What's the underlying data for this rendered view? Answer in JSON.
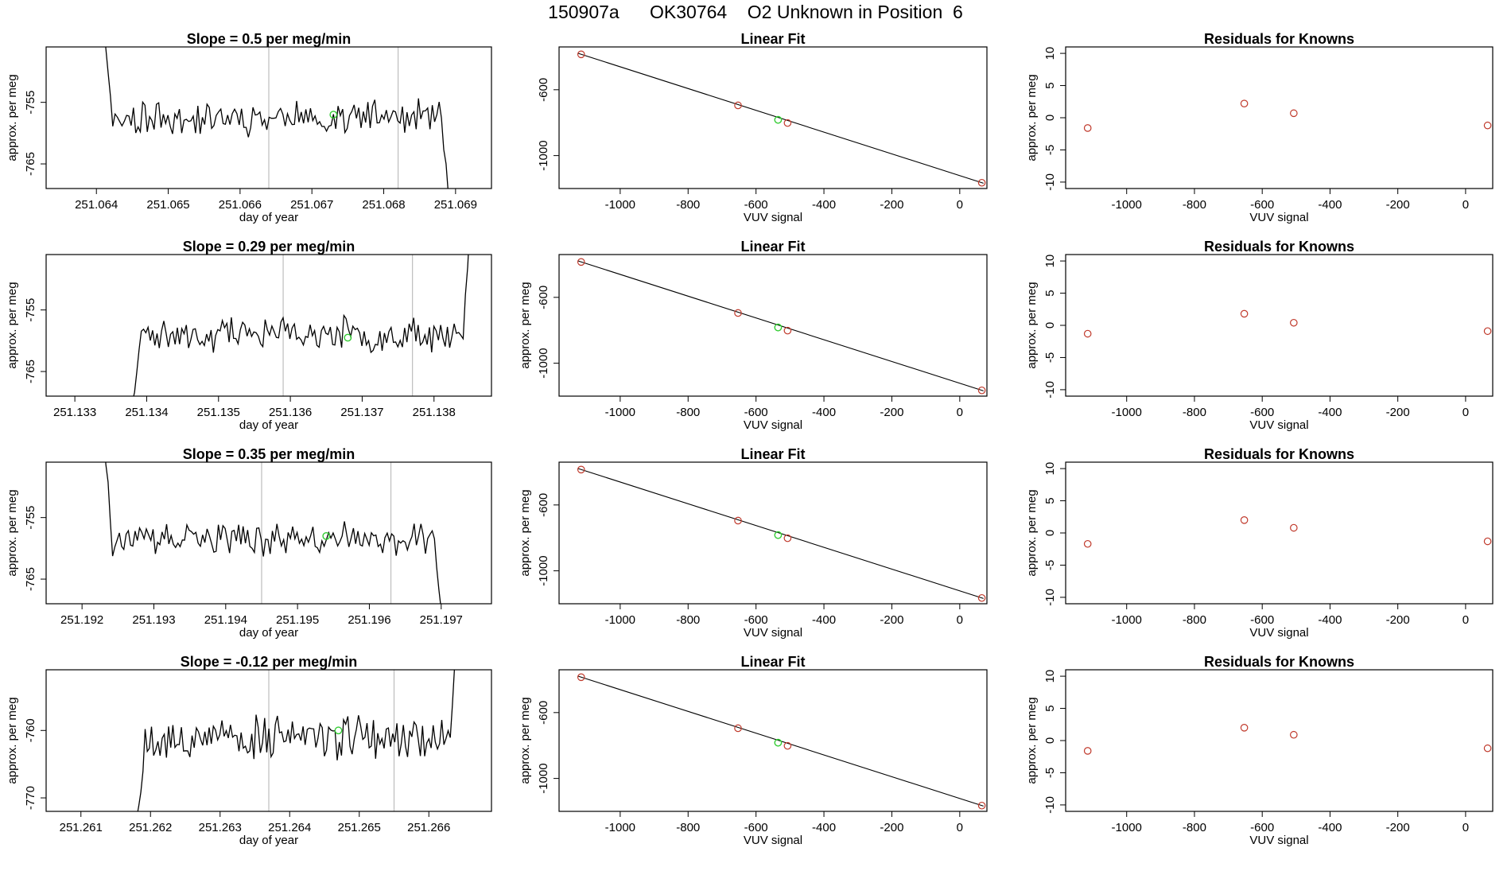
{
  "header": {
    "title": "150907a      OK30764    O2 Unknown in Position  6"
  },
  "colors": {
    "axis": "#000000",
    "series": "#000000",
    "vline": "#bdbdbd",
    "known": "#c0392b",
    "unknown": "#33cc33"
  },
  "chart_data": [
    {
      "id": "ts1",
      "type": "line",
      "title": "Slope =  0.5  per meg/min",
      "xlabel": "day of year",
      "ylabel": "approx. per meg",
      "xlim": [
        251.0633,
        251.0695
      ],
      "ylim": [
        -769,
        -746
      ],
      "xticks": [
        "251.064",
        "251.065",
        "251.066",
        "251.067",
        "251.068",
        "251.069"
      ],
      "yticks": [
        "-755",
        "-765"
      ],
      "vlines": [
        251.0664,
        251.0682
      ],
      "unknown_point": [
        251.0673,
        -757.0
      ],
      "seed": 11,
      "start": [
        251.0641,
        -741
      ],
      "end": [
        251.0689,
        -770
      ],
      "n": 150,
      "level": -757.5,
      "noise": 2.2
    },
    {
      "id": "lf1",
      "type": "scatter",
      "title": "Linear Fit",
      "xlabel": "VUV signal",
      "ylabel": "",
      "xlim": [
        -1180,
        80
      ],
      "ylim": [
        -1200,
        -340
      ],
      "xticks": [
        "-1000",
        "-800",
        "-600",
        "-400",
        "-200",
        "0"
      ],
      "yticks": [
        "-600",
        "-1000"
      ],
      "known_x": [
        -1115,
        -653,
        -507,
        65
      ],
      "known_y": [
        -385,
        -695,
        -802,
        -1165
      ],
      "fit_line": [
        [
          -1125,
          -378
        ],
        [
          70,
          -1168
        ]
      ],
      "unknown_point": [
        -535,
        -783
      ]
    },
    {
      "id": "rs1",
      "type": "scatter",
      "title": "Residuals for Knowns",
      "xlabel": "VUV signal",
      "ylabel": "approx. per meg",
      "xlim": [
        -1180,
        80
      ],
      "ylim": [
        -11,
        11
      ],
      "xticks": [
        "-1000",
        "-800",
        "-600",
        "-400",
        "-200",
        "0"
      ],
      "yticks": [
        "10",
        "5",
        "0",
        "-5",
        "-10"
      ],
      "known_x": [
        -1115,
        -653,
        -507,
        65
      ],
      "known_y": [
        -1.6,
        2.2,
        0.7,
        -1.2
      ]
    },
    {
      "id": "ts2",
      "type": "line",
      "title": "Slope =  0.29  per meg/min",
      "xlabel": "day of year",
      "ylabel": "approx. per meg",
      "xlim": [
        251.1326,
        251.1388
      ],
      "ylim": [
        -769,
        -746
      ],
      "xticks": [
        "251.133",
        "251.134",
        "251.135",
        "251.136",
        "251.137",
        "251.138"
      ],
      "yticks": [
        "-755",
        "-765"
      ],
      "vlines": [
        251.1359,
        251.1377
      ],
      "unknown_point": [
        251.1368,
        -759.5
      ],
      "seed": 23,
      "start": [
        251.1338,
        -770
      ],
      "end": [
        251.1385,
        -741
      ],
      "n": 150,
      "level": -759.0,
      "noise": 2.2
    },
    {
      "id": "lf2",
      "type": "scatter",
      "title": "Linear Fit",
      "xlabel": "VUV signal",
      "ylabel": "approx. per meg",
      "xlim": [
        -1180,
        80
      ],
      "ylim": [
        -1200,
        -340
      ],
      "xticks": [
        "-1000",
        "-800",
        "-600",
        "-400",
        "-200",
        "0"
      ],
      "yticks": [
        "-600",
        "-1000"
      ],
      "known_x": [
        -1115,
        -653,
        -507,
        65
      ],
      "known_y": [
        -385,
        -695,
        -802,
        -1165
      ],
      "fit_line": [
        [
          -1125,
          -378
        ],
        [
          70,
          -1168
        ]
      ],
      "unknown_point": [
        -535,
        -783
      ]
    },
    {
      "id": "rs2",
      "type": "scatter",
      "title": "Residuals for Knowns",
      "xlabel": "VUV signal",
      "ylabel": "approx. per meg",
      "xlim": [
        -1180,
        80
      ],
      "ylim": [
        -11,
        11
      ],
      "xticks": [
        "-1000",
        "-800",
        "-600",
        "-400",
        "-200",
        "0"
      ],
      "yticks": [
        "10",
        "5",
        "0",
        "-5",
        "-10"
      ],
      "known_x": [
        -1115,
        -653,
        -507,
        65
      ],
      "known_y": [
        -1.3,
        1.8,
        0.4,
        -0.9
      ]
    },
    {
      "id": "ts3",
      "type": "line",
      "title": "Slope =  0.35  per meg/min",
      "xlabel": "day of year",
      "ylabel": "approx. per meg",
      "xlim": [
        251.1915,
        251.1977
      ],
      "ylim": [
        -769,
        -746
      ],
      "xticks": [
        "251.192",
        "251.193",
        "251.194",
        "251.195",
        "251.196",
        "251.197"
      ],
      "yticks": [
        "-755",
        "-765"
      ],
      "vlines": [
        251.1945,
        251.1963
      ],
      "unknown_point": [
        251.1954,
        -758.0
      ],
      "seed": 37,
      "start": [
        251.1923,
        -741
      ],
      "end": [
        251.197,
        -770
      ],
      "n": 150,
      "level": -758.5,
      "noise": 2.0
    },
    {
      "id": "lf3",
      "type": "scatter",
      "title": "Linear Fit",
      "xlabel": "VUV signal",
      "ylabel": "approx. per meg",
      "xlim": [
        -1180,
        80
      ],
      "ylim": [
        -1200,
        -340
      ],
      "xticks": [
        "-1000",
        "-800",
        "-600",
        "-400",
        "-200",
        "0"
      ],
      "yticks": [
        "-600",
        "-1000"
      ],
      "known_x": [
        -1115,
        -653,
        -507,
        65
      ],
      "known_y": [
        -385,
        -695,
        -802,
        -1165
      ],
      "fit_line": [
        [
          -1125,
          -378
        ],
        [
          70,
          -1168
        ]
      ],
      "unknown_point": [
        -535,
        -783
      ]
    },
    {
      "id": "rs3",
      "type": "scatter",
      "title": "Residuals for Knowns",
      "xlabel": "VUV signal",
      "ylabel": "approx. per meg",
      "xlim": [
        -1180,
        80
      ],
      "ylim": [
        -11,
        11
      ],
      "xticks": [
        "-1000",
        "-800",
        "-600",
        "-400",
        "-200",
        "0"
      ],
      "yticks": [
        "10",
        "5",
        "0",
        "-5",
        "-10"
      ],
      "known_x": [
        -1115,
        -653,
        -507,
        65
      ],
      "known_y": [
        -1.7,
        2.0,
        0.8,
        -1.3
      ]
    },
    {
      "id": "ts4",
      "type": "line",
      "title": "Slope =  -0.12  per meg/min",
      "xlabel": "day of year",
      "ylabel": "approx. per meg",
      "xlim": [
        251.2605,
        251.2669
      ],
      "ylim": [
        -772,
        -751
      ],
      "xticks": [
        "251.261",
        "251.262",
        "251.263",
        "251.264",
        "251.265",
        "251.266"
      ],
      "yticks": [
        "-760",
        "-770"
      ],
      "vlines": [
        251.2637,
        251.2655
      ],
      "unknown_point": [
        251.2647,
        -760.0
      ],
      "seed": 53,
      "start": [
        251.2618,
        -773
      ],
      "end": [
        251.2664,
        -745
      ],
      "n": 150,
      "level": -761.0,
      "noise": 2.6
    },
    {
      "id": "lf4",
      "type": "scatter",
      "title": "Linear Fit",
      "xlabel": "VUV signal",
      "ylabel": "approx. per meg",
      "xlim": [
        -1180,
        80
      ],
      "ylim": [
        -1200,
        -340
      ],
      "xticks": [
        "-1000",
        "-800",
        "-600",
        "-400",
        "-200",
        "0"
      ],
      "yticks": [
        "-600",
        "-1000"
      ],
      "known_x": [
        -1115,
        -653,
        -507,
        65
      ],
      "known_y": [
        -385,
        -695,
        -802,
        -1165
      ],
      "fit_line": [
        [
          -1125,
          -378
        ],
        [
          70,
          -1168
        ]
      ],
      "unknown_point": [
        -535,
        -783
      ]
    },
    {
      "id": "rs4",
      "type": "scatter",
      "title": "Residuals for Knowns",
      "xlabel": "VUV signal",
      "ylabel": "approx. per meg",
      "xlim": [
        -1180,
        80
      ],
      "ylim": [
        -11,
        11
      ],
      "xticks": [
        "-1000",
        "-800",
        "-600",
        "-400",
        "-200",
        "0"
      ],
      "yticks": [
        "10",
        "5",
        "0",
        "-5",
        "-10"
      ],
      "known_x": [
        -1115,
        -653,
        -507,
        65
      ],
      "known_y": [
        -1.6,
        2.0,
        0.9,
        -1.2
      ]
    }
  ]
}
